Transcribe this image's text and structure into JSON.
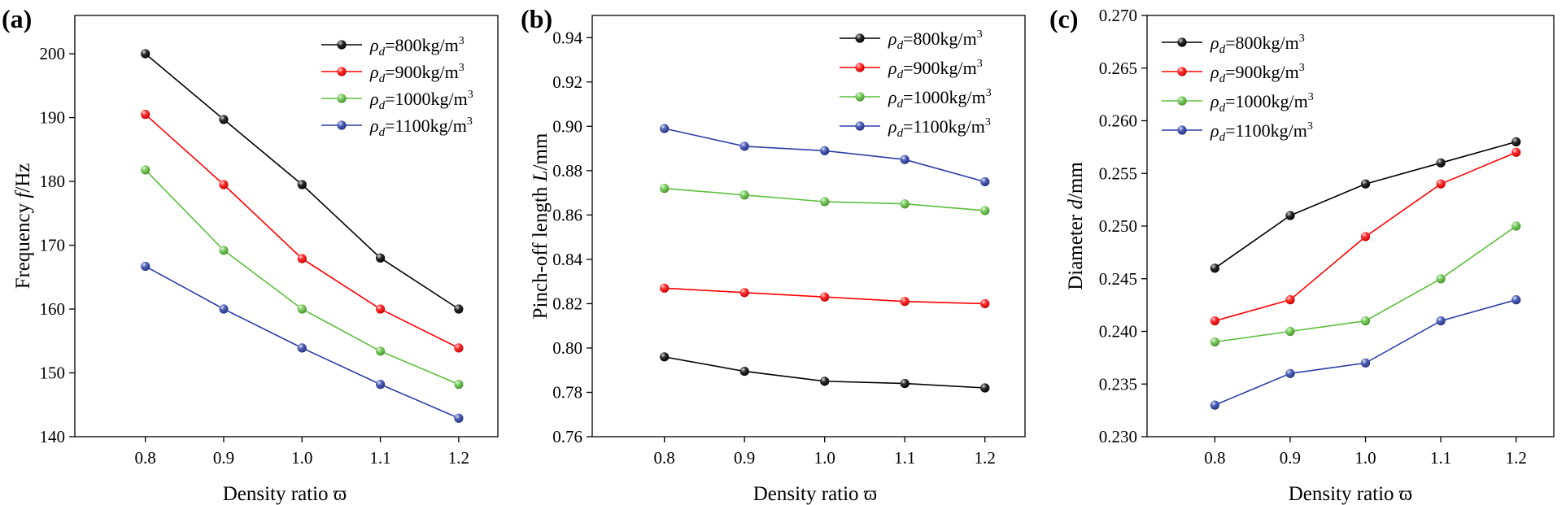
{
  "chart_data": [
    {
      "type": "line",
      "panel_label": "(a)",
      "xlabel": "Density ratio ϖ",
      "ylabel": "Frequency f/Hz",
      "x": [
        0.8,
        0.9,
        1.0,
        1.1,
        1.2
      ],
      "x_tick_labels": [
        "0.8",
        "0.9",
        "1.0",
        "1.1",
        "1.2"
      ],
      "xlim": [
        0.71,
        1.25
      ],
      "ylim": [
        140,
        206
      ],
      "y_ticks": [
        140,
        150,
        160,
        170,
        180,
        190,
        200
      ],
      "y_tick_labels": [
        "140",
        "150",
        "160",
        "170",
        "180",
        "190",
        "200"
      ],
      "legend_position": "top-right",
      "series": [
        {
          "name": "ρd=800kg/m³",
          "legend": {
            "sym": "ρ",
            "sub": "d",
            "eq": "=800kg/m",
            "sup": "3"
          },
          "color": "#000000",
          "values": [
            200,
            189.7,
            179.5,
            168,
            160
          ]
        },
        {
          "name": "ρd=900kg/m³",
          "legend": {
            "sym": "ρ",
            "sub": "d",
            "eq": "=900kg/m",
            "sup": "3"
          },
          "color": "#ff0000",
          "values": [
            190.5,
            179.5,
            167.9,
            160,
            153.9
          ]
        },
        {
          "name": "ρd=1000kg/m³",
          "legend": {
            "sym": "ρ",
            "sub": "d",
            "eq": "=1000kg/m",
            "sup": "3"
          },
          "color": "#5cbf3c",
          "values": [
            181.8,
            169.2,
            160,
            153.4,
            148.2
          ]
        },
        {
          "name": "ρd=1100kg/m³",
          "legend": {
            "sym": "ρ",
            "sub": "d",
            "eq": "=1100kg/m",
            "sup": "3"
          },
          "color": "#2b3fa8",
          "values": [
            166.7,
            160,
            153.9,
            148.2,
            142.9
          ]
        }
      ]
    },
    {
      "type": "line",
      "panel_label": "(b)",
      "xlabel": "Density ratio ϖ",
      "ylabel": "Pinch-off length L/mm",
      "x": [
        0.8,
        0.9,
        1.0,
        1.1,
        1.2
      ],
      "x_tick_labels": [
        "0.8",
        "0.9",
        "1.0",
        "1.1",
        "1.2"
      ],
      "xlim": [
        0.71,
        1.25
      ],
      "ylim": [
        0.76,
        0.95
      ],
      "y_ticks": [
        0.76,
        0.78,
        0.8,
        0.82,
        0.84,
        0.86,
        0.88,
        0.9,
        0.92,
        0.94
      ],
      "y_tick_labels": [
        "0.76",
        "0.78",
        "0.80",
        "0.82",
        "0.84",
        "0.86",
        "0.88",
        "0.90",
        "0.92",
        "0.94"
      ],
      "legend_position": "top-right",
      "series": [
        {
          "name": "ρd=800kg/m³",
          "legend": {
            "sym": "ρ",
            "sub": "d",
            "eq": "=800kg/m",
            "sup": "3"
          },
          "color": "#000000",
          "values": [
            0.796,
            0.7895,
            0.785,
            0.784,
            0.782
          ]
        },
        {
          "name": "ρd=900kg/m³",
          "legend": {
            "sym": "ρ",
            "sub": "d",
            "eq": "=900kg/m",
            "sup": "3"
          },
          "color": "#ff0000",
          "values": [
            0.827,
            0.825,
            0.823,
            0.821,
            0.82
          ]
        },
        {
          "name": "ρd=1000kg/m³",
          "legend": {
            "sym": "ρ",
            "sub": "d",
            "eq": "=1000kg/m",
            "sup": "3"
          },
          "color": "#5cbf3c",
          "values": [
            0.872,
            0.869,
            0.866,
            0.865,
            0.862
          ]
        },
        {
          "name": "ρd=1100kg/m³",
          "legend": {
            "sym": "ρ",
            "sub": "d",
            "eq": "=1100kg/m",
            "sup": "3"
          },
          "color": "#2b3fa8",
          "values": [
            0.899,
            0.891,
            0.889,
            0.885,
            0.875
          ]
        }
      ]
    },
    {
      "type": "line",
      "panel_label": "(c)",
      "xlabel": "Density ratio ϖ",
      "ylabel": "Diameter d/mm",
      "x": [
        0.8,
        0.9,
        1.0,
        1.1,
        1.2
      ],
      "x_tick_labels": [
        "0.8",
        "0.9",
        "1.0",
        "1.1",
        "1.2"
      ],
      "xlim": [
        0.71,
        1.25
      ],
      "ylim": [
        0.23,
        0.27
      ],
      "y_ticks": [
        0.23,
        0.235,
        0.24,
        0.245,
        0.25,
        0.255,
        0.26,
        0.265,
        0.27
      ],
      "y_tick_labels": [
        "0.230",
        "0.235",
        "0.240",
        "0.245",
        "0.250",
        "0.255",
        "0.260",
        "0.265",
        "0.270"
      ],
      "legend_position": "top-left",
      "series": [
        {
          "name": "ρd=800kg/m³",
          "legend": {
            "sym": "ρ",
            "sub": "d",
            "eq": "=800kg/m",
            "sup": "3"
          },
          "color": "#000000",
          "values": [
            0.246,
            0.251,
            0.254,
            0.256,
            0.258
          ]
        },
        {
          "name": "ρd=900kg/m³",
          "legend": {
            "sym": "ρ",
            "sub": "d",
            "eq": "=900kg/m",
            "sup": "3"
          },
          "color": "#ff0000",
          "values": [
            0.241,
            0.243,
            0.249,
            0.254,
            0.257
          ]
        },
        {
          "name": "ρd=1000kg/m³",
          "legend": {
            "sym": "ρ",
            "sub": "d",
            "eq": "=1000kg/m",
            "sup": "3"
          },
          "color": "#5cbf3c",
          "values": [
            0.239,
            0.24,
            0.241,
            0.245,
            0.25
          ]
        },
        {
          "name": "ρd=1100kg/m³",
          "legend": {
            "sym": "ρ",
            "sub": "d",
            "eq": "=1100kg/m",
            "sup": "3"
          },
          "color": "#2b3fa8",
          "values": [
            0.233,
            0.236,
            0.237,
            0.241,
            0.243
          ]
        }
      ]
    }
  ]
}
